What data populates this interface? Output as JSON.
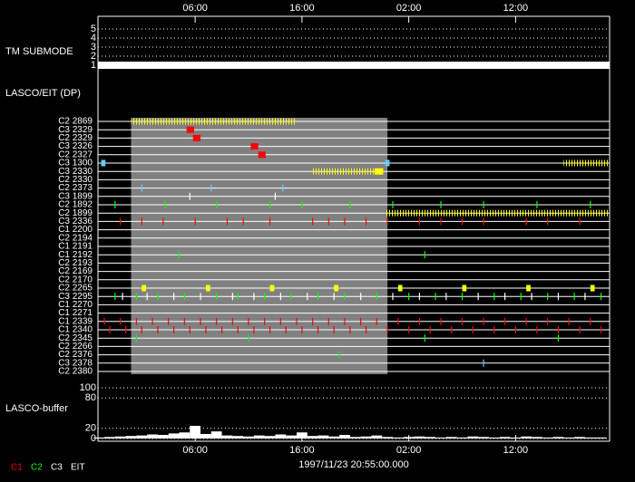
{
  "chart_data": {
    "type": "timeline",
    "xlim": [
      -3.1,
      44.8
    ],
    "xticks": [
      {
        "value": 6,
        "label": "06:00"
      },
      {
        "value": 16,
        "label": "16:00"
      },
      {
        "value": 26,
        "label": "02:00"
      },
      {
        "value": 36,
        "label": "12:00"
      }
    ],
    "xlabel": "1997/11/23 20:55:00.000",
    "tm_submode": {
      "title": "TM SUBMODE",
      "ylim": [
        1,
        5
      ],
      "yticks": [
        1,
        2,
        3,
        4,
        5
      ],
      "value": 1
    },
    "lasco_title": "LASCO/EIT (DP)",
    "shaded": [
      0,
      24
    ],
    "rows": [
      "C2 2869",
      "C3 2329",
      "C2 2329",
      "C3 2326",
      "C2 2327",
      "C3 1300",
      "C3 2330",
      "C2 2330",
      "C2 2373",
      "C3 1899",
      "C2 1892",
      "C2 1899",
      "C3 2336",
      "C1 2200",
      "C2 2194",
      "C1 2191",
      "C1 2192",
      "C2 2193",
      "C2 2169",
      "C2 2170",
      "C2 2265",
      "C3 2295",
      "C1 2270",
      "C1 2271",
      "C1 2339",
      "C1 2340",
      "C2 2345",
      "C2 2266",
      "C2 2376",
      "C3 2378",
      "C2 2380"
    ],
    "spans": [
      {
        "row": 0,
        "start": 0,
        "end": 15.5,
        "color": "#ffff00",
        "hatch": true
      },
      {
        "row": 1,
        "start": 5.2,
        "end": 5.9,
        "color": "#ff0000",
        "hatch": false
      },
      {
        "row": 2,
        "start": 5.8,
        "end": 6.5,
        "color": "#ff0000",
        "hatch": false
      },
      {
        "row": 3,
        "start": 11.2,
        "end": 11.9,
        "color": "#ff0000",
        "hatch": false
      },
      {
        "row": 4,
        "start": 11.9,
        "end": 12.6,
        "color": "#ff0000",
        "hatch": false
      },
      {
        "row": 5,
        "start": -2.8,
        "end": -2.4,
        "color": "#66ccff",
        "hatch": false
      },
      {
        "row": 5,
        "start": 23.8,
        "end": 24.2,
        "color": "#66ccff",
        "hatch": false
      },
      {
        "row": 5,
        "start": 40.5,
        "end": 44.8,
        "color": "#ffff00",
        "hatch": true
      },
      {
        "row": 6,
        "start": 17,
        "end": 22.8,
        "color": "#ffff00",
        "hatch": true
      },
      {
        "row": 6,
        "start": 22.8,
        "end": 23.6,
        "color": "#ffff00",
        "hatch": false
      },
      {
        "row": 11,
        "start": 23.8,
        "end": 44.8,
        "color": "#ffff00",
        "hatch": true
      },
      {
        "row": 20,
        "start": 1,
        "end": 1.4,
        "color": "#ffff00",
        "hatch": false
      },
      {
        "row": 20,
        "start": 7,
        "end": 7.4,
        "color": "#ffff00",
        "hatch": false
      },
      {
        "row": 20,
        "start": 13,
        "end": 13.4,
        "color": "#ffff00",
        "hatch": false
      },
      {
        "row": 20,
        "start": 19,
        "end": 19.4,
        "color": "#ffff00",
        "hatch": false
      },
      {
        "row": 20,
        "start": 25,
        "end": 25.4,
        "color": "#ffff00",
        "hatch": false
      },
      {
        "row": 20,
        "start": 31,
        "end": 31.4,
        "color": "#ffff00",
        "hatch": false
      },
      {
        "row": 20,
        "start": 37,
        "end": 37.4,
        "color": "#ffff00",
        "hatch": false
      },
      {
        "row": 20,
        "start": 43,
        "end": 43.4,
        "color": "#ffff00",
        "hatch": false
      }
    ],
    "ticks": [
      {
        "row": 8,
        "color": "#66ccff",
        "x": [
          1,
          7.5,
          14.2
        ]
      },
      {
        "row": 9,
        "color": "#ffffff",
        "x": [
          5.5,
          13.5
        ]
      },
      {
        "row": 10,
        "color": "#00ff00",
        "x": [
          -1.5,
          3.2,
          8,
          13,
          16,
          20.5,
          24.5,
          29,
          33,
          38,
          43
        ]
      },
      {
        "row": 12,
        "color": "#ff0000",
        "x": [
          -1,
          1,
          3,
          6,
          9,
          10.5,
          13,
          17,
          18.5,
          20,
          22,
          24,
          27,
          29,
          31,
          33,
          37,
          39,
          42
        ]
      },
      {
        "row": 16,
        "color": "#00ff00",
        "x": [
          4.5,
          27.5
        ]
      },
      {
        "row": 21,
        "color": "#00ff00",
        "x": [
          -1.5,
          0.5,
          2.5,
          5,
          8,
          10,
          12.5,
          15,
          17.5,
          20,
          23,
          26,
          28.5,
          31,
          34,
          36.5,
          39,
          41.5,
          44
        ]
      },
      {
        "row": 21,
        "color": "#ffffff",
        "x": [
          -0.8,
          1.5,
          4,
          6.5,
          9.5,
          11.5,
          14,
          16.5,
          19,
          21.5,
          24.5,
          27,
          29.5,
          32.5,
          35,
          37.5,
          40,
          42.5
        ]
      },
      {
        "row": 24,
        "color": "#ff0000",
        "x": [
          -2.5,
          -1,
          0.5,
          2,
          3.5,
          5,
          6.5,
          8,
          9.5,
          11,
          12.5,
          14,
          15.5,
          17,
          18.5,
          20,
          21.5,
          23,
          25,
          27,
          29,
          31,
          33,
          35,
          37,
          39,
          41,
          43
        ]
      },
      {
        "row": 25,
        "color": "#ff0000",
        "x": [
          -2,
          -0.5,
          1,
          2.5,
          4,
          5.5,
          7,
          8.5,
          10,
          11.5,
          13,
          14.5,
          16,
          17.5,
          19,
          20.5,
          22,
          24,
          26,
          28,
          30,
          32,
          34,
          36,
          38,
          40,
          42,
          44
        ]
      },
      {
        "row": 26,
        "color": "#00ff00",
        "x": [
          0.5,
          11,
          27.5,
          40
        ]
      },
      {
        "row": 28,
        "color": "#00ff00",
        "x": [
          19.5
        ]
      },
      {
        "row": 29,
        "color": "#66ccff",
        "x": [
          33
        ]
      }
    ],
    "buffer": {
      "title": "LASCO-buffer",
      "ylim": [
        0,
        100
      ],
      "yticks": [
        0,
        20,
        80,
        100
      ],
      "color": "#ffffff",
      "x": [
        -3,
        -2,
        -1,
        0,
        1,
        2,
        3,
        4,
        5,
        6,
        7,
        8,
        9,
        10,
        11,
        12,
        13,
        14,
        15,
        16,
        17,
        18,
        19,
        20,
        21,
        22,
        23,
        24,
        25,
        26,
        27,
        28,
        29,
        30,
        31,
        32,
        33,
        34,
        35,
        36,
        37,
        38,
        39,
        40,
        41,
        42,
        43,
        44
      ],
      "values": [
        2,
        3,
        4,
        5,
        6,
        8,
        7,
        10,
        12,
        25,
        9,
        14,
        6,
        5,
        4,
        6,
        5,
        8,
        6,
        12,
        5,
        6,
        4,
        7,
        3,
        4,
        6,
        3,
        2,
        3,
        4,
        3,
        2,
        3,
        2,
        4,
        3,
        2,
        3,
        2,
        4,
        3,
        2,
        3,
        2,
        3,
        2,
        2
      ]
    },
    "legend": [
      {
        "name": "C1",
        "color": "#ff0000"
      },
      {
        "name": "C2",
        "color": "#00ff00"
      },
      {
        "name": "C3",
        "color": "#ffffff"
      },
      {
        "name": "EIT",
        "color": "#ffffff"
      }
    ]
  }
}
